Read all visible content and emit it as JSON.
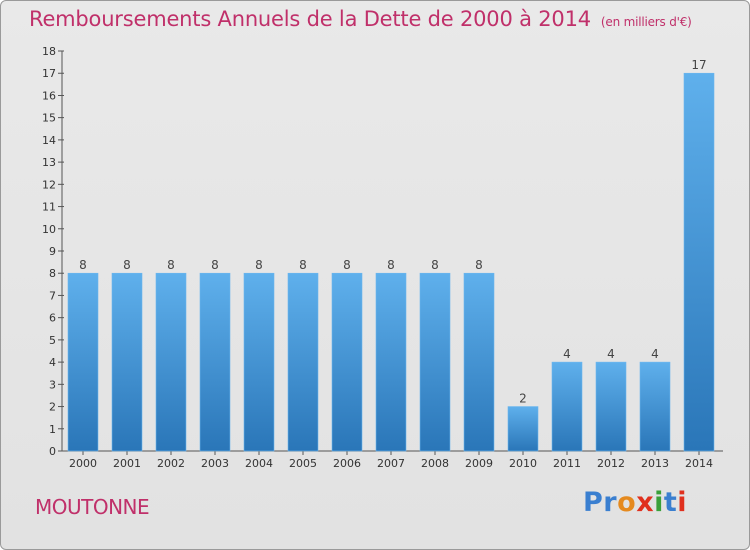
{
  "header": {
    "title": "Remboursements Annuels de la Dette de 2000 à 2014",
    "unit": "(en milliers d'€)"
  },
  "footer": {
    "commune": "MOUTONNE",
    "logo": [
      "P",
      "r",
      "o",
      "x",
      "i",
      "t",
      "i"
    ],
    "logo_colors": [
      "#3a7fd0",
      "#3a7fd0",
      "#e58a1f",
      "#e0301e",
      "#3aa03a",
      "#3a7fd0",
      "#e0301e"
    ]
  },
  "chart_data": {
    "type": "bar",
    "categories": [
      "2000",
      "2001",
      "2002",
      "2003",
      "2004",
      "2005",
      "2006",
      "2007",
      "2008",
      "2009",
      "2010",
      "2011",
      "2012",
      "2013",
      "2014"
    ],
    "values": [
      8,
      8,
      8,
      8,
      8,
      8,
      8,
      8,
      8,
      8,
      2,
      4,
      4,
      4,
      17
    ],
    "data_labels": [
      "8",
      "8",
      "8",
      "8",
      "8",
      "8",
      "8",
      "8",
      "8",
      "8",
      "2",
      "4",
      "4",
      "4",
      "17"
    ],
    "title": "Remboursements Annuels de la Dette de 2000 à 2014",
    "xlabel": "",
    "ylabel": "",
    "ylim": [
      0,
      18
    ],
    "yticks": [
      0,
      1,
      2,
      3,
      4,
      5,
      6,
      7,
      8,
      9,
      10,
      11,
      12,
      13,
      14,
      15,
      16,
      17,
      18
    ],
    "ytick_labels": [
      "0",
      "1",
      "2",
      "3",
      "4",
      "5",
      "6",
      "7",
      "8",
      "9",
      "10",
      "11",
      "12",
      "13",
      "14",
      "15",
      "16",
      "17",
      "18"
    ],
    "grid": false,
    "bar_color_top": "#5fb0ec",
    "bar_color_bottom": "#2a76b8"
  }
}
